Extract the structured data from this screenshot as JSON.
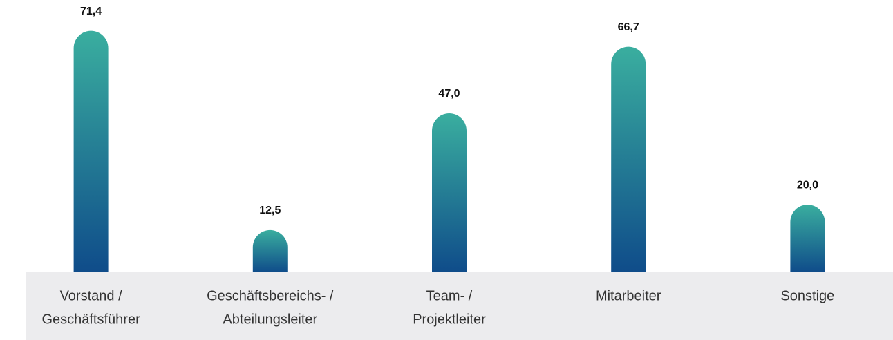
{
  "chart_data": {
    "type": "bar",
    "categories": [
      [
        "Vorstand /",
        "Geschäftsführer"
      ],
      [
        "Geschäftsbereichs- /",
        "Abteilungsleiter"
      ],
      [
        "Team- /",
        "Projektleiter"
      ],
      [
        "Mitarbeiter"
      ],
      [
        "Sonstige"
      ]
    ],
    "values": [
      71.4,
      12.5,
      47.0,
      66.7,
      20.0
    ],
    "value_labels": [
      "71,4",
      "12,5",
      "47,0",
      "66,7",
      "20,0"
    ],
    "color": [
      "#3aae9f",
      "#0f4c8a"
    ],
    "ylim": [
      0,
      75
    ]
  }
}
